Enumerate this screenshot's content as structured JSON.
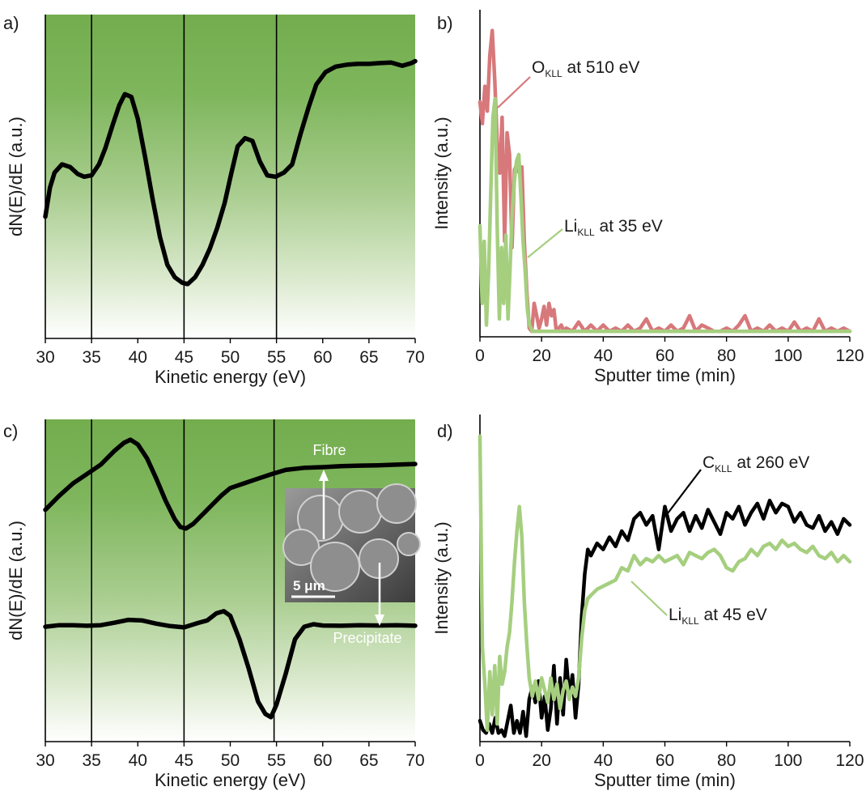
{
  "chart_data": [
    {
      "panel": "a)",
      "type": "line",
      "xlabel": "Kinetic energy (eV)",
      "ylabel": "dN(E)/dE (a.u.)",
      "xlim": [
        30,
        70
      ],
      "ylim": [
        0,
        1
      ],
      "x_ticks": [
        "30",
        "35",
        "40",
        "45",
        "50",
        "55",
        "60",
        "65",
        "70"
      ],
      "background": "green gradient fading to white at bottom",
      "vlines": [
        35,
        45,
        55
      ],
      "series": [
        {
          "color": "#000000",
          "x": [
            30,
            30.5,
            31,
            31.8,
            32.7,
            33.5,
            34.2,
            35,
            35.8,
            36.5,
            37.3,
            38,
            38.6,
            39.3,
            40,
            40.8,
            41.6,
            42.4,
            43.2,
            44,
            44.8,
            45.4,
            46.2,
            47,
            47.8,
            48.6,
            49.4,
            50.1,
            50.8,
            51.6,
            52.4,
            53.2,
            54,
            54.9,
            55.8,
            56.7,
            57.6,
            58.5,
            59.3,
            60.3,
            61.4,
            62.6,
            63.8,
            65,
            66.2,
            67.4,
            68.6,
            69.6,
            70
          ],
          "y": [
            0.36,
            0.465,
            0.52,
            0.55,
            0.54,
            0.515,
            0.505,
            0.51,
            0.55,
            0.61,
            0.695,
            0.765,
            0.805,
            0.795,
            0.715,
            0.575,
            0.425,
            0.285,
            0.185,
            0.14,
            0.12,
            0.115,
            0.14,
            0.185,
            0.245,
            0.32,
            0.41,
            0.515,
            0.615,
            0.645,
            0.635,
            0.56,
            0.51,
            0.505,
            0.52,
            0.55,
            0.66,
            0.76,
            0.84,
            0.885,
            0.905,
            0.912,
            0.915,
            0.915,
            0.918,
            0.92,
            0.908,
            0.918,
            0.925
          ]
        }
      ]
    },
    {
      "panel": "b)",
      "type": "line",
      "xlabel": "Sputter time (min)",
      "ylabel": "Intensity (a.u.)",
      "xlim": [
        0,
        120
      ],
      "ylim": [
        0,
        1
      ],
      "x_ticks": [
        "0",
        "20",
        "40",
        "60",
        "80",
        "100",
        "120"
      ],
      "annotations": [
        {
          "base": "O",
          "sub": "KLL",
          "rest": "at 510 eV",
          "color": "#d7787b"
        },
        {
          "base": "Li",
          "sub": "KLL",
          "rest": "at 35 eV",
          "color": "#a5cf7f"
        }
      ],
      "series": [
        {
          "color": "#d7787b",
          "x": [
            0,
            0.8,
            1.6,
            2.4,
            3.2,
            4,
            4.8,
            5.6,
            6.4,
            7.2,
            8,
            8.8,
            9.6,
            10.4,
            11.2,
            12,
            12.8,
            13.6,
            14.4,
            15.2,
            16,
            16.8,
            17.6,
            18.4,
            19.2,
            20,
            20.8,
            21.6,
            22.4,
            23.2,
            24,
            24.8,
            25.6,
            26.4,
            27.2,
            28,
            30,
            32,
            34,
            36,
            38,
            40,
            42,
            44,
            46,
            48,
            50,
            52,
            54,
            56,
            58,
            60,
            62,
            64,
            66,
            68,
            70,
            72,
            74,
            76,
            78,
            80,
            82,
            84,
            86,
            88,
            90,
            92,
            94,
            96,
            98,
            100,
            102,
            104,
            106,
            108,
            110,
            112,
            114,
            116,
            118,
            120
          ],
          "y": [
            0.75,
            0.68,
            0.8,
            0.72,
            0.9,
            0.98,
            0.82,
            0.62,
            0.52,
            0.7,
            0.3,
            0.65,
            0.58,
            0.28,
            0.53,
            0.55,
            0.52,
            0.54,
            0.3,
            0.14,
            0.02,
            0.01,
            0.1,
            0.06,
            0.02,
            0.05,
            0.09,
            0.03,
            0.1,
            0.06,
            0.08,
            0.01,
            0.02,
            0.03,
            0.01,
            0.02,
            0.01,
            0.04,
            0.01,
            0.03,
            0.01,
            0.03,
            0.01,
            0.02,
            0.01,
            0.03,
            0.01,
            0.02,
            0.05,
            0.01,
            0.02,
            0.01,
            0.03,
            0.01,
            0.02,
            0.06,
            0.01,
            0.03,
            0.02,
            0.01,
            0.01,
            0.02,
            0.01,
            0.03,
            0.06,
            0.01,
            0.02,
            0.01,
            0.03,
            0.01,
            0.02,
            0.01,
            0.04,
            0.01,
            0.02,
            0.01,
            0.05,
            0.01,
            0.02,
            0.01,
            0.02,
            0.01
          ]
        },
        {
          "color": "#a5cf7f",
          "x": [
            0,
            0.7,
            1.4,
            2.1,
            2.8,
            3.5,
            4.2,
            4.9,
            5.6,
            6.3,
            7,
            7.7,
            8.4,
            9.1,
            9.8,
            10.5,
            11.2,
            11.9,
            12.6,
            13.3,
            14,
            14.7,
            15.4,
            16.1,
            17,
            20,
            25,
            30,
            40,
            50,
            60,
            70,
            80,
            90,
            100,
            110,
            120
          ],
          "y": [
            0.35,
            0.1,
            0.3,
            0.03,
            0.2,
            0.45,
            0.7,
            0.76,
            0.35,
            0.05,
            0.28,
            0.1,
            0.32,
            0.05,
            0.22,
            0.4,
            0.5,
            0.56,
            0.58,
            0.44,
            0.3,
            0.2,
            0.08,
            0.03,
            0.01,
            0.01,
            0.01,
            0.01,
            0.01,
            0.01,
            0.01,
            0.01,
            0.01,
            0.01,
            0.01,
            0.01,
            0.01
          ]
        }
      ]
    },
    {
      "panel": "c)",
      "type": "line",
      "xlabel": "Kinetic energy (eV)",
      "ylabel": "dN(E)/dE (a.u.)",
      "xlim": [
        30,
        70
      ],
      "ylim": [
        0,
        1
      ],
      "x_ticks": [
        "30",
        "35",
        "40",
        "45",
        "50",
        "55",
        "60",
        "65",
        "70"
      ],
      "background": "green gradient fading to white at bottom",
      "vlines": [
        35,
        45,
        55
      ],
      "inset": {
        "scalebar": "5 μm",
        "top_label": "Fibre",
        "bottom_label": "Precipitate"
      },
      "series": [
        {
          "name": "Fibre",
          "color": "#000000",
          "x": [
            30,
            31.5,
            33,
            34.5,
            36,
            37.5,
            38.5,
            39.2,
            40,
            41,
            42,
            43,
            44,
            44.6,
            45.2,
            46,
            47,
            48,
            49,
            50,
            51.5,
            53,
            54.5,
            56,
            58,
            60,
            62,
            64,
            66,
            68,
            70
          ],
          "y": [
            0.715,
            0.76,
            0.8,
            0.83,
            0.86,
            0.905,
            0.93,
            0.94,
            0.925,
            0.88,
            0.815,
            0.745,
            0.685,
            0.66,
            0.655,
            0.67,
            0.7,
            0.73,
            0.76,
            0.785,
            0.8,
            0.815,
            0.83,
            0.843,
            0.85,
            0.852,
            0.855,
            0.857,
            0.858,
            0.86,
            0.862
          ]
        },
        {
          "name": "Precipitate",
          "color": "#000000",
          "x": [
            30,
            31.5,
            33,
            34.5,
            36,
            37.5,
            39,
            40.5,
            42,
            43.5,
            45,
            46.5,
            47.5,
            48.5,
            49.3,
            50,
            51,
            52,
            53,
            53.8,
            54.4,
            55,
            56,
            57,
            58,
            59,
            60,
            62,
            64,
            66,
            68,
            70
          ],
          "y": [
            0.34,
            0.345,
            0.345,
            0.343,
            0.345,
            0.353,
            0.362,
            0.36,
            0.35,
            0.342,
            0.338,
            0.352,
            0.36,
            0.383,
            0.39,
            0.375,
            0.3,
            0.205,
            0.1,
            0.06,
            0.05,
            0.09,
            0.19,
            0.3,
            0.34,
            0.348,
            0.344,
            0.343,
            0.345,
            0.344,
            0.345,
            0.343
          ]
        }
      ]
    },
    {
      "panel": "d)",
      "type": "line",
      "xlabel": "Sputter time (min)",
      "ylabel": "Intensity (a.u.)",
      "xlim": [
        0,
        120
      ],
      "ylim": [
        0,
        1
      ],
      "x_ticks": [
        "0",
        "20",
        "40",
        "60",
        "80",
        "100",
        "120"
      ],
      "annotations": [
        {
          "base": "C",
          "sub": "KLL",
          "rest": "at 260 eV",
          "color": "#000000"
        },
        {
          "base": "Li",
          "sub": "KLL",
          "rest": "at 45 eV",
          "color": "#a5cf7f"
        }
      ],
      "series": [
        {
          "color": "#000000",
          "x": [
            0,
            1,
            2,
            3,
            4,
            5,
            6,
            7,
            8,
            9,
            10,
            11,
            12,
            13,
            14,
            15,
            16,
            17,
            18,
            19,
            20,
            21,
            22,
            23,
            24,
            25,
            26,
            27,
            28,
            29,
            30,
            31,
            32,
            33,
            34,
            35,
            36,
            38,
            40,
            42,
            44,
            46,
            48,
            50,
            52,
            54,
            56,
            58,
            60,
            62,
            64,
            66,
            68,
            70,
            72,
            74,
            76,
            78,
            80,
            82,
            84,
            86,
            88,
            90,
            92,
            94,
            96,
            98,
            100,
            102,
            104,
            106,
            108,
            110,
            112,
            114,
            116,
            118,
            120
          ],
          "y": [
            0.06,
            0.03,
            0.02,
            0.05,
            0.02,
            0.07,
            0.02,
            0.03,
            0.01,
            0.06,
            0.11,
            0.02,
            0.06,
            0.02,
            0.09,
            0.01,
            0.13,
            0.17,
            0.12,
            0.19,
            0.07,
            0.14,
            0.03,
            0.1,
            0.24,
            0.05,
            0.2,
            0.08,
            0.26,
            0.14,
            0.21,
            0.07,
            0.18,
            0.4,
            0.54,
            0.62,
            0.6,
            0.64,
            0.62,
            0.66,
            0.63,
            0.68,
            0.65,
            0.72,
            0.74,
            0.7,
            0.73,
            0.62,
            0.76,
            0.68,
            0.72,
            0.74,
            0.68,
            0.73,
            0.69,
            0.75,
            0.71,
            0.67,
            0.74,
            0.72,
            0.76,
            0.7,
            0.74,
            0.77,
            0.72,
            0.78,
            0.74,
            0.77,
            0.76,
            0.71,
            0.74,
            0.7,
            0.69,
            0.73,
            0.68,
            0.71,
            0.67,
            0.72,
            0.7
          ]
        },
        {
          "color": "#a5cf7f",
          "x": [
            0,
            0.8,
            1.6,
            2.4,
            3.2,
            4,
            4.8,
            5.6,
            6.4,
            7.2,
            8,
            8.8,
            9.6,
            10.4,
            11.2,
            12,
            12.8,
            13.6,
            14.4,
            15.2,
            16,
            17,
            18,
            19,
            20,
            21,
            22,
            23,
            24,
            25,
            26,
            27,
            28,
            29,
            30,
            31,
            32,
            33,
            34,
            35,
            36,
            38,
            40,
            42,
            44,
            46,
            48,
            50,
            52,
            54,
            56,
            58,
            60,
            62,
            64,
            66,
            68,
            70,
            72,
            74,
            76,
            78,
            80,
            82,
            84,
            86,
            88,
            90,
            92,
            94,
            96,
            98,
            100,
            102,
            104,
            106,
            108,
            110,
            112,
            114,
            116,
            118,
            120
          ],
          "y": [
            0.99,
            0.3,
            0.18,
            0.03,
            0.22,
            0.08,
            0.24,
            0.05,
            0.27,
            0.18,
            0.22,
            0.3,
            0.35,
            0.45,
            0.58,
            0.68,
            0.76,
            0.66,
            0.45,
            0.31,
            0.2,
            0.14,
            0.19,
            0.13,
            0.2,
            0.16,
            0.12,
            0.2,
            0.13,
            0.18,
            0.1,
            0.16,
            0.19,
            0.13,
            0.17,
            0.14,
            0.2,
            0.33,
            0.42,
            0.46,
            0.47,
            0.49,
            0.5,
            0.51,
            0.52,
            0.56,
            0.55,
            0.6,
            0.57,
            0.59,
            0.58,
            0.6,
            0.58,
            0.59,
            0.6,
            0.57,
            0.61,
            0.6,
            0.59,
            0.61,
            0.62,
            0.6,
            0.56,
            0.55,
            0.58,
            0.59,
            0.62,
            0.6,
            0.63,
            0.64,
            0.62,
            0.65,
            0.63,
            0.64,
            0.62,
            0.61,
            0.63,
            0.6,
            0.59,
            0.61,
            0.58,
            0.6,
            0.58
          ]
        }
      ]
    }
  ]
}
